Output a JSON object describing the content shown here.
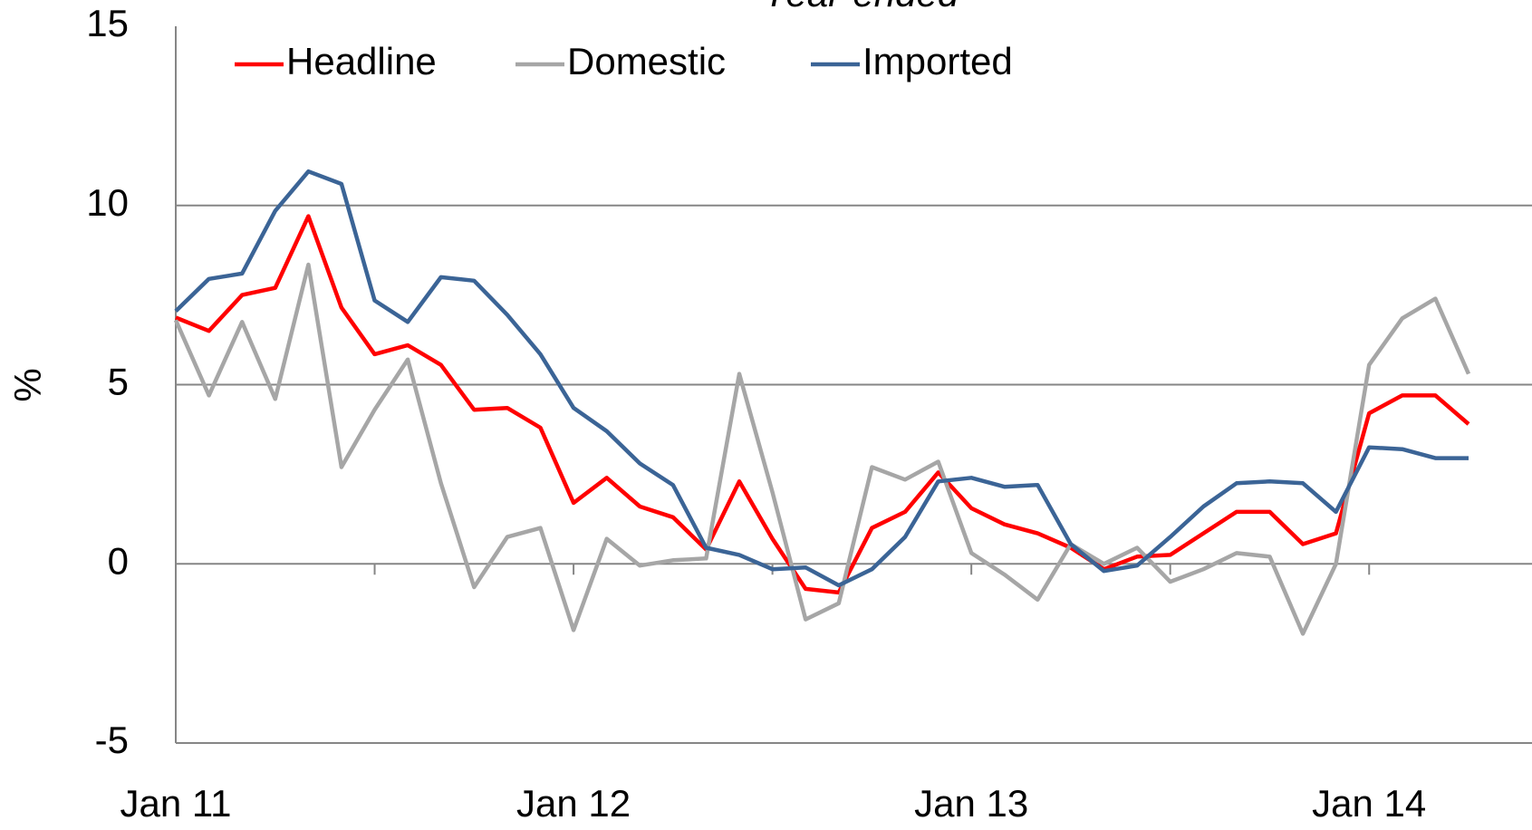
{
  "chart_data": {
    "type": "line",
    "title": "Year-ended",
    "y_label": "%",
    "categories": [
      "Jan 11",
      null,
      null,
      null,
      null,
      null,
      null,
      null,
      null,
      null,
      null,
      null,
      "Jan 12",
      null,
      null,
      null,
      null,
      null,
      null,
      null,
      null,
      null,
      null,
      null,
      "Jan 13",
      null,
      null,
      null,
      null,
      null,
      null,
      null,
      null,
      null,
      null,
      null,
      "Jan 14",
      null,
      null,
      null
    ],
    "series": [
      {
        "name": "Headline",
        "color": "#ff0000",
        "values": [
          6.87,
          6.5,
          7.5,
          7.7,
          9.7,
          7.15,
          5.85,
          6.1,
          5.55,
          4.3,
          4.35,
          3.8,
          1.7,
          2.4,
          1.6,
          1.3,
          0.4,
          2.3,
          0.7,
          -0.7,
          -0.8,
          1.0,
          1.45,
          2.55,
          1.55,
          1.1,
          0.85,
          0.45,
          -0.15,
          0.2,
          0.25,
          0.85,
          1.45,
          1.45,
          0.55,
          0.85,
          4.2,
          4.7,
          4.7,
          3.9
        ]
      },
      {
        "name": "Domestic",
        "color": "#a6a6a6",
        "values": [
          6.8,
          4.7,
          6.75,
          4.6,
          8.35,
          2.7,
          4.3,
          5.7,
          2.25,
          -0.65,
          0.75,
          1.0,
          -1.85,
          0.7,
          -0.05,
          0.1,
          0.15,
          5.3,
          2.0,
          -1.55,
          -1.1,
          2.7,
          2.35,
          2.85,
          0.3,
          -0.3,
          -1.0,
          0.55,
          0,
          0.45,
          -0.5,
          -0.15,
          0.3,
          0.2,
          -1.95,
          0,
          5.55,
          6.85,
          7.4,
          5.3
        ]
      },
      {
        "name": "Imported",
        "color": "#3b6496",
        "values": [
          7.05,
          7.95,
          8.1,
          9.85,
          10.95,
          10.6,
          7.35,
          6.75,
          8.0,
          7.9,
          6.95,
          5.85,
          4.35,
          3.7,
          2.8,
          2.2,
          0.45,
          0.25,
          -0.15,
          -0.1,
          -0.6,
          -0.15,
          0.75,
          2.3,
          2.4,
          2.15,
          2.2,
          0.55,
          -0.2,
          -0.05,
          0.75,
          1.6,
          2.25,
          2.3,
          2.25,
          1.45,
          3.25,
          3.2,
          2.95,
          2.95
        ]
      }
    ],
    "ylim": [
      -5,
      15
    ],
    "yticks": [
      -5,
      0,
      5,
      10,
      15
    ],
    "grid": true,
    "legend": "top-left"
  }
}
